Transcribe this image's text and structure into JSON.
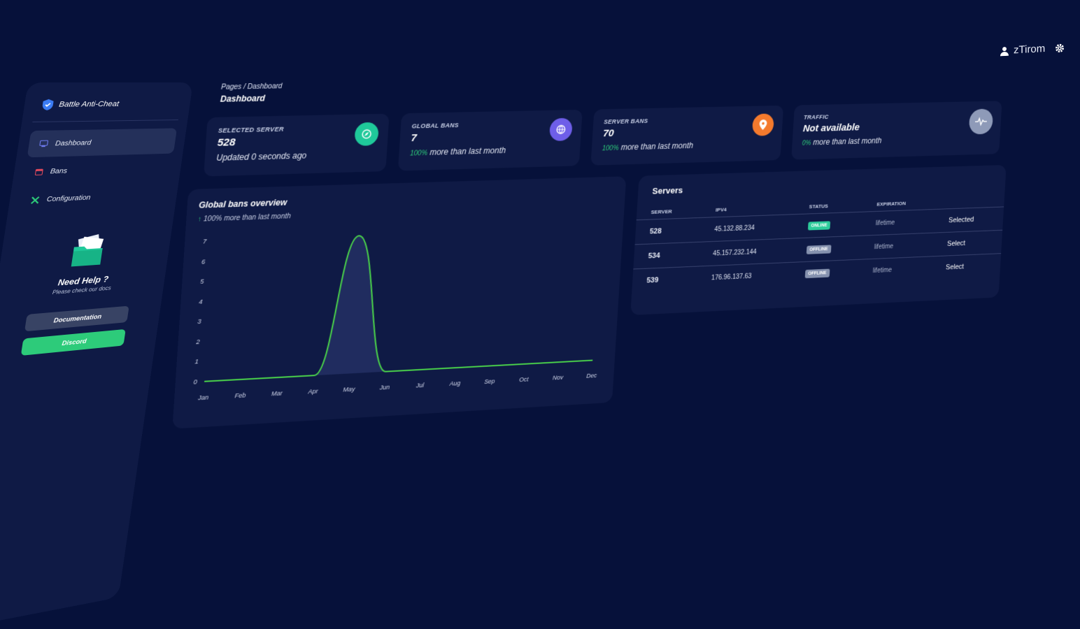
{
  "topbar": {
    "username": "zTirom",
    "user_icon": "user-icon",
    "settings_icon": "gear-icon"
  },
  "sidebar": {
    "brand": "Battle Anti-Cheat",
    "items": [
      {
        "label": "Dashboard",
        "icon": "monitor-icon",
        "active": true
      },
      {
        "label": "Bans",
        "icon": "calendar-icon",
        "active": false
      },
      {
        "label": "Configuration",
        "icon": "tools-icon",
        "active": false
      }
    ],
    "help": {
      "title": "Need Help ?",
      "subtitle": "Please check our docs",
      "docs_button": "Documentation",
      "discord_button": "Discord"
    }
  },
  "breadcrumb": {
    "root": "Pages",
    "sep": "/",
    "current": "Dashboard",
    "page_title": "Dashboard"
  },
  "cards": [
    {
      "label": "SELECTED SERVER",
      "value": "528",
      "foot_pct": "",
      "foot_text": "Updated 0 seconds ago",
      "icon": "compass-icon",
      "color": "#1fc99a"
    },
    {
      "label": "GLOBAL BANS",
      "value": "7",
      "foot_pct": "100%",
      "foot_text": "more than last month",
      "icon": "globe-icon",
      "color": "#6e5ee8"
    },
    {
      "label": "SERVER BANS",
      "value": "70",
      "foot_pct": "100%",
      "foot_text": "more than last month",
      "icon": "pin-icon",
      "color": "#f47a2d"
    },
    {
      "label": "TRAFFIC",
      "value": "Not available",
      "foot_pct": "0%",
      "foot_text": "more than last month",
      "icon": "pulse-icon",
      "color": "#8e9ab8"
    }
  ],
  "chart_section": {
    "title": "Global bans overview",
    "subtitle_pct": "100%",
    "subtitle_text": "more than last month"
  },
  "chart_data": {
    "type": "line",
    "title": "Global bans overview",
    "categories": [
      "Jan",
      "Feb",
      "Mar",
      "Apr",
      "May",
      "Jun",
      "Jul",
      "Aug",
      "Sep",
      "Oct",
      "Nov",
      "Dec"
    ],
    "values": [
      0,
      0,
      0,
      0,
      7,
      0,
      0,
      0,
      0,
      0,
      0,
      0
    ],
    "yticks": [
      0,
      1,
      2,
      3,
      4,
      5,
      6,
      7
    ],
    "ylim": [
      0,
      7
    ],
    "grid": false,
    "line_color": "#4ad34a",
    "fill_color": "#233064"
  },
  "servers": {
    "title": "Servers",
    "columns": [
      "SERVER",
      "IPV4",
      "STATUS",
      "EXPIRATION",
      ""
    ],
    "rows": [
      {
        "server": "528",
        "ipv4": "45.132.88.234",
        "status": "ONLINE",
        "expiration": "lifetime",
        "action": "Selected"
      },
      {
        "server": "534",
        "ipv4": "45.157.232.144",
        "status": "OFFLINE",
        "expiration": "lifetime",
        "action": "Select"
      },
      {
        "server": "539",
        "ipv4": "176.96.137.63",
        "status": "OFFLINE",
        "expiration": "lifetime",
        "action": "Select"
      }
    ]
  }
}
